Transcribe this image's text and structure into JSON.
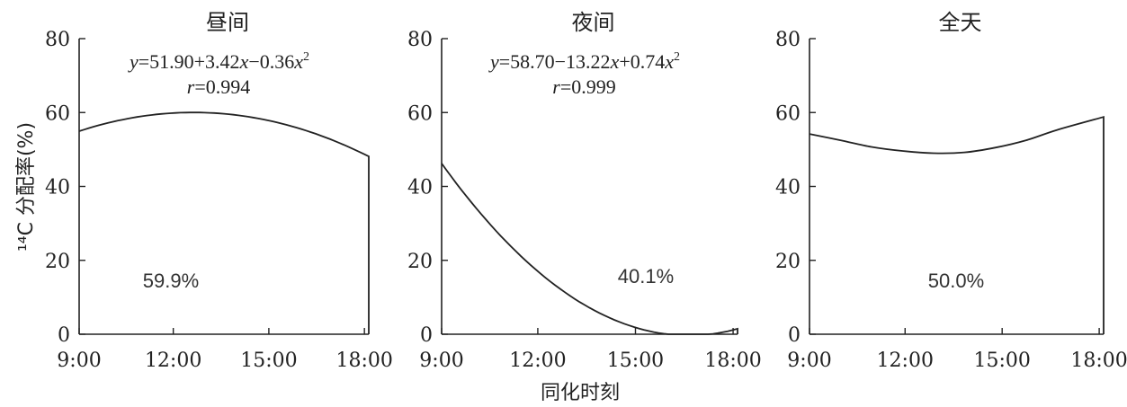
{
  "chart_data": {
    "type": "line",
    "ylabel": "¹⁴C 分配率(%)",
    "xlabel": "同化时刻",
    "panels": [
      {
        "title": "昼间",
        "equation": {
          "prefix": "y",
          "body": "=51.90+3.42",
          "x1": "x",
          "mid": "−0.36",
          "x2": "x",
          "exp": "2"
        },
        "r_label": "r",
        "r_value": "=0.994",
        "percent": "59.9%",
        "x_ticks": [
          "9:00",
          "12:00",
          "15:00",
          "18:00"
        ],
        "y_ticks": [
          "0",
          "20",
          "40",
          "60",
          "80"
        ],
        "xlim": [
          9,
          18.5
        ],
        "ylim": [
          0,
          80
        ],
        "curve": {
          "a": 51.9,
          "b": 3.42,
          "c": -0.36,
          "x_offset": 8,
          "x_from": 9,
          "x_to": 18.5,
          "ends_at_zero": true
        }
      },
      {
        "title": "夜间",
        "equation": {
          "prefix": "y",
          "body": "=58.70−13.22",
          "x1": "x",
          "mid": "+0.74",
          "x2": "x",
          "exp": "2"
        },
        "r_label": "r",
        "r_value": "=0.999",
        "percent": "40.1%",
        "x_ticks": [
          "9:00",
          "12:00",
          "15:00",
          "18:00"
        ],
        "y_ticks": [
          "0",
          "20",
          "40",
          "60",
          "80"
        ],
        "xlim": [
          9,
          18.5
        ],
        "ylim": [
          0,
          80
        ],
        "curve": {
          "a": 58.7,
          "b": -13.22,
          "c": 0.74,
          "x_offset": 8,
          "x_from": 9,
          "x_to": 18.5,
          "ends_at_zero": true
        }
      },
      {
        "title": "全天",
        "equation": null,
        "percent": "50.0%",
        "x_ticks": [
          "9:00",
          "12:00",
          "15:00",
          "18:00"
        ],
        "y_ticks": [
          "0",
          "20",
          "40",
          "60",
          "80"
        ],
        "xlim": [
          9,
          18.5
        ],
        "ylim": [
          0,
          80
        ],
        "curve": {
          "points": [
            [
              9,
              54.2
            ],
            [
              10,
              52.5
            ],
            [
              11,
              50.7
            ],
            [
              12,
              49.6
            ],
            [
              13,
              49.0
            ],
            [
              14,
              49.2
            ],
            [
              15,
              50.5
            ],
            [
              16,
              52.5
            ],
            [
              17,
              55.3
            ],
            [
              18.5,
              58.8
            ]
          ],
          "ends_at_zero": true
        }
      }
    ]
  }
}
